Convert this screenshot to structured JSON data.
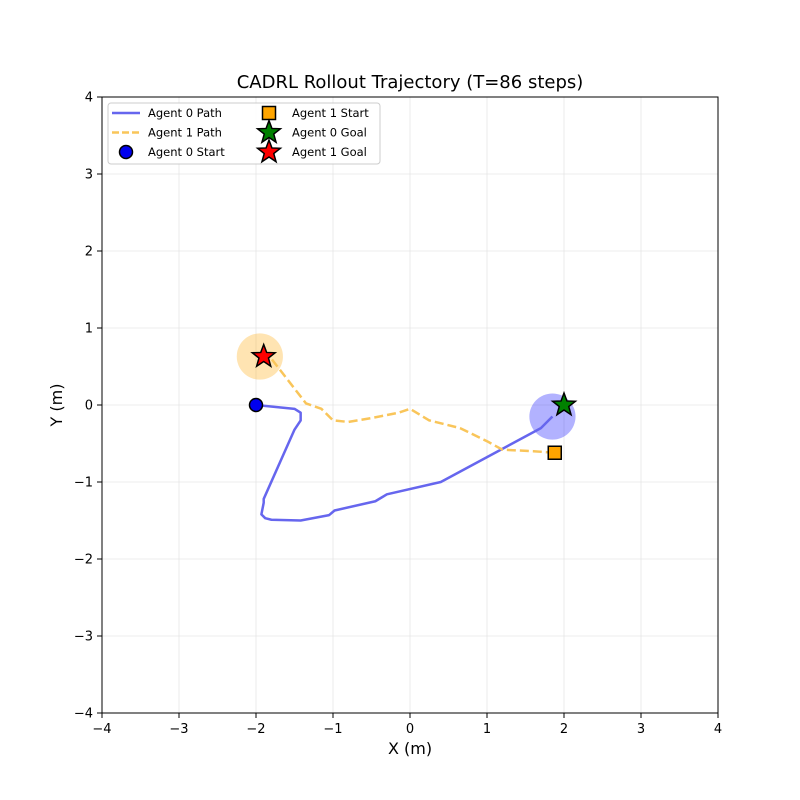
{
  "chart_data": {
    "type": "line",
    "title": "CADRL Rollout Trajectory (T=86 steps)",
    "xlabel": "X (m)",
    "ylabel": "Y (m)",
    "xlim": [
      -4,
      4
    ],
    "ylim": [
      -4,
      4
    ],
    "xticks": [
      -4,
      -3,
      -2,
      -1,
      0,
      1,
      2,
      3,
      4
    ],
    "yticks": [
      -4,
      -3,
      -2,
      -1,
      0,
      1,
      2,
      3,
      4
    ],
    "xtick_labels": [
      "−4",
      "−3",
      "−2",
      "−1",
      "0",
      "1",
      "2",
      "3",
      "4"
    ],
    "ytick_labels": [
      "−4",
      "−3",
      "−2",
      "−1",
      "0",
      "1",
      "2",
      "3",
      "4"
    ],
    "grid": true,
    "legend_position": "top-left",
    "series": [
      {
        "name": "Agent 0 Path",
        "color": "#6666ee",
        "style": "solid",
        "points": [
          [
            -2.0,
            0.0
          ],
          [
            -1.5,
            -0.05
          ],
          [
            -1.42,
            -0.1
          ],
          [
            -1.42,
            -0.2
          ],
          [
            -1.5,
            -0.32
          ],
          [
            -1.9,
            -1.22
          ],
          [
            -1.9,
            -1.27
          ],
          [
            -1.93,
            -1.42
          ],
          [
            -1.88,
            -1.47
          ],
          [
            -1.8,
            -1.49
          ],
          [
            -1.42,
            -1.5
          ],
          [
            -1.05,
            -1.43
          ],
          [
            -0.98,
            -1.37
          ],
          [
            -0.45,
            -1.25
          ],
          [
            -0.3,
            -1.16
          ],
          [
            0.4,
            -1.0
          ],
          [
            1.7,
            -0.3
          ],
          [
            1.85,
            -0.15
          ]
        ]
      },
      {
        "name": "Agent 1 Path",
        "color": "#f9c55a",
        "style": "dashed",
        "points": [
          [
            1.88,
            -0.62
          ],
          [
            1.6,
            -0.6
          ],
          [
            1.2,
            -0.58
          ],
          [
            1.0,
            -0.47
          ],
          [
            0.65,
            -0.3
          ],
          [
            0.25,
            -0.2
          ],
          [
            0.0,
            -0.05
          ],
          [
            -0.15,
            -0.1
          ],
          [
            -0.5,
            -0.17
          ],
          [
            -0.8,
            -0.22
          ],
          [
            -1.0,
            -0.2
          ],
          [
            -1.15,
            -0.05
          ],
          [
            -1.35,
            0.02
          ],
          [
            -1.8,
            0.6
          ],
          [
            -1.95,
            0.63
          ]
        ]
      }
    ],
    "markers": [
      {
        "name": "Agent 0 Start",
        "shape": "circle",
        "color": "#0000ee",
        "x": -2.0,
        "y": 0.0
      },
      {
        "name": "Agent 1 Start",
        "shape": "square",
        "color": "#ffa500",
        "x": 1.88,
        "y": -0.62
      },
      {
        "name": "Agent 0 Goal",
        "shape": "star",
        "color": "#008000",
        "x": 2.0,
        "y": 0.0
      },
      {
        "name": "Agent 1 Goal",
        "shape": "star",
        "color": "#ff0000",
        "x": -1.9,
        "y": 0.63
      }
    ],
    "agent_bodies": [
      {
        "agent": "Agent 0",
        "color": "#0000ff",
        "x": 1.85,
        "y": -0.15,
        "radius": 0.3
      },
      {
        "agent": "Agent 1",
        "color": "#ffa500",
        "x": -1.95,
        "y": 0.63,
        "radius": 0.3
      }
    ],
    "legend": [
      {
        "label": "Agent 0 Path",
        "kind": "line",
        "color": "#6666ee",
        "style": "solid"
      },
      {
        "label": "Agent 1 Path",
        "kind": "line",
        "color": "#f9c55a",
        "style": "dashed"
      },
      {
        "label": "Agent 0 Start",
        "kind": "circle",
        "color": "#0000ee"
      },
      {
        "label": "Agent 1 Start",
        "kind": "square",
        "color": "#ffa500"
      },
      {
        "label": "Agent 0 Goal",
        "kind": "star",
        "color": "#008000"
      },
      {
        "label": "Agent 1 Goal",
        "kind": "star",
        "color": "#ff0000"
      }
    ]
  }
}
